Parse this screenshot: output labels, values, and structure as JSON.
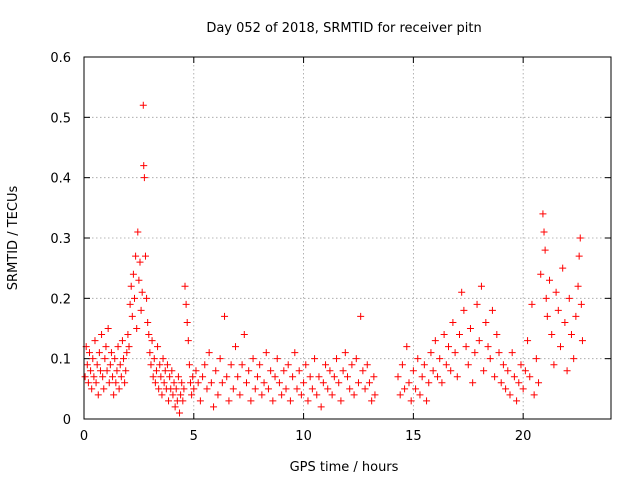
{
  "chart_data": {
    "type": "scatter",
    "title": "Day 052 of 2018, SRMTID for receiver pitn",
    "xlabel": "GPS time / hours",
    "ylabel": "SRMTID / TECUs",
    "xlim": [
      0,
      24
    ],
    "ylim": [
      0,
      0.6
    ],
    "xticks": [
      0,
      5,
      10,
      15,
      20
    ],
    "xtick_labels": [
      "0",
      "5",
      "10",
      "15",
      "20"
    ],
    "yticks": [
      0,
      0.1,
      0.2,
      0.3,
      0.4,
      0.5,
      0.6
    ],
    "ytick_labels": [
      "0",
      "0.1",
      "0.2",
      "0.3",
      "0.4",
      "0.5",
      "0.6"
    ],
    "grid": true,
    "marker": "plus",
    "color": "#ff0000",
    "series": [
      {
        "name": "SRMTID",
        "points": [
          [
            0.05,
            0.07
          ],
          [
            0.1,
            0.12
          ],
          [
            0.15,
            0.09
          ],
          [
            0.2,
            0.06
          ],
          [
            0.25,
            0.11
          ],
          [
            0.3,
            0.08
          ],
          [
            0.35,
            0.05
          ],
          [
            0.4,
            0.1
          ],
          [
            0.45,
            0.07
          ],
          [
            0.5,
            0.13
          ],
          [
            0.55,
            0.06
          ],
          [
            0.6,
            0.09
          ],
          [
            0.65,
            0.04
          ],
          [
            0.7,
            0.11
          ],
          [
            0.75,
            0.08
          ],
          [
            0.8,
            0.14
          ],
          [
            0.85,
            0.07
          ],
          [
            0.9,
            0.05
          ],
          [
            0.95,
            0.1
          ],
          [
            1.0,
            0.12
          ],
          [
            1.05,
            0.08
          ],
          [
            1.1,
            0.15
          ],
          [
            1.15,
            0.06
          ],
          [
            1.2,
            0.09
          ],
          [
            1.25,
            0.11
          ],
          [
            1.3,
            0.07
          ],
          [
            1.35,
            0.04
          ],
          [
            1.4,
            0.1
          ],
          [
            1.45,
            0.06
          ],
          [
            1.5,
            0.08
          ],
          [
            1.55,
            0.12
          ],
          [
            1.6,
            0.05
          ],
          [
            1.65,
            0.09
          ],
          [
            1.7,
            0.07
          ],
          [
            1.75,
            0.13
          ],
          [
            1.8,
            0.1
          ],
          [
            1.85,
            0.06
          ],
          [
            1.9,
            0.08
          ],
          [
            1.95,
            0.11
          ],
          [
            2.0,
            0.14
          ],
          [
            2.05,
            0.12
          ],
          [
            2.1,
            0.19
          ],
          [
            2.15,
            0.22
          ],
          [
            2.2,
            0.17
          ],
          [
            2.25,
            0.24
          ],
          [
            2.3,
            0.2
          ],
          [
            2.35,
            0.27
          ],
          [
            2.4,
            0.15
          ],
          [
            2.45,
            0.31
          ],
          [
            2.5,
            0.23
          ],
          [
            2.55,
            0.26
          ],
          [
            2.6,
            0.18
          ],
          [
            2.65,
            0.21
          ],
          [
            2.7,
            0.52
          ],
          [
            2.72,
            0.42
          ],
          [
            2.75,
            0.4
          ],
          [
            2.8,
            0.27
          ],
          [
            2.85,
            0.2
          ],
          [
            2.9,
            0.16
          ],
          [
            2.95,
            0.14
          ],
          [
            3.0,
            0.11
          ],
          [
            3.05,
            0.09
          ],
          [
            3.1,
            0.13
          ],
          [
            3.15,
            0.07
          ],
          [
            3.2,
            0.1
          ],
          [
            3.25,
            0.06
          ],
          [
            3.3,
            0.08
          ],
          [
            3.35,
            0.12
          ],
          [
            3.4,
            0.05
          ],
          [
            3.45,
            0.09
          ],
          [
            3.5,
            0.07
          ],
          [
            3.55,
            0.04
          ],
          [
            3.6,
            0.1
          ],
          [
            3.65,
            0.06
          ],
          [
            3.7,
            0.08
          ],
          [
            3.75,
            0.05
          ],
          [
            3.8,
            0.09
          ],
          [
            3.85,
            0.03
          ],
          [
            3.9,
            0.07
          ],
          [
            3.95,
            0.05
          ],
          [
            4.0,
            0.08
          ],
          [
            4.05,
            0.04
          ],
          [
            4.1,
            0.06
          ],
          [
            4.15,
            0.02
          ],
          [
            4.2,
            0.05
          ],
          [
            4.25,
            0.03
          ],
          [
            4.3,
            0.07
          ],
          [
            4.35,
            0.01
          ],
          [
            4.4,
            0.04
          ],
          [
            4.45,
            0.06
          ],
          [
            4.5,
            0.03
          ],
          [
            4.55,
            0.05
          ],
          [
            4.6,
            0.22
          ],
          [
            4.65,
            0.19
          ],
          [
            4.7,
            0.16
          ],
          [
            4.75,
            0.13
          ],
          [
            4.8,
            0.09
          ],
          [
            4.85,
            0.06
          ],
          [
            4.9,
            0.04
          ],
          [
            4.95,
            0.07
          ],
          [
            5.0,
            0.05
          ],
          [
            5.1,
            0.08
          ],
          [
            5.2,
            0.06
          ],
          [
            5.3,
            0.03
          ],
          [
            5.4,
            0.07
          ],
          [
            5.5,
            0.09
          ],
          [
            5.6,
            0.05
          ],
          [
            5.7,
            0.11
          ],
          [
            5.8,
            0.06
          ],
          [
            5.9,
            0.02
          ],
          [
            6.0,
            0.08
          ],
          [
            6.1,
            0.04
          ],
          [
            6.2,
            0.1
          ],
          [
            6.3,
            0.06
          ],
          [
            6.4,
            0.17
          ],
          [
            6.5,
            0.07
          ],
          [
            6.6,
            0.03
          ],
          [
            6.7,
            0.09
          ],
          [
            6.8,
            0.05
          ],
          [
            6.9,
            0.12
          ],
          [
            7.0,
            0.07
          ],
          [
            7.1,
            0.04
          ],
          [
            7.2,
            0.09
          ],
          [
            7.3,
            0.14
          ],
          [
            7.4,
            0.06
          ],
          [
            7.5,
            0.08
          ],
          [
            7.6,
            0.03
          ],
          [
            7.7,
            0.1
          ],
          [
            7.8,
            0.05
          ],
          [
            7.9,
            0.07
          ],
          [
            8.0,
            0.09
          ],
          [
            8.1,
            0.04
          ],
          [
            8.2,
            0.06
          ],
          [
            8.3,
            0.11
          ],
          [
            8.4,
            0.05
          ],
          [
            8.5,
            0.08
          ],
          [
            8.6,
            0.03
          ],
          [
            8.7,
            0.07
          ],
          [
            8.8,
            0.1
          ],
          [
            8.9,
            0.06
          ],
          [
            9.0,
            0.04
          ],
          [
            9.1,
            0.08
          ],
          [
            9.2,
            0.05
          ],
          [
            9.3,
            0.09
          ],
          [
            9.4,
            0.03
          ],
          [
            9.5,
            0.07
          ],
          [
            9.6,
            0.11
          ],
          [
            9.7,
            0.05
          ],
          [
            9.8,
            0.08
          ],
          [
            9.9,
            0.04
          ],
          [
            10.0,
            0.06
          ],
          [
            10.1,
            0.09
          ],
          [
            10.2,
            0.03
          ],
          [
            10.3,
            0.07
          ],
          [
            10.4,
            0.05
          ],
          [
            10.5,
            0.1
          ],
          [
            10.6,
            0.04
          ],
          [
            10.7,
            0.07
          ],
          [
            10.8,
            0.02
          ],
          [
            10.9,
            0.06
          ],
          [
            11.0,
            0.09
          ],
          [
            11.1,
            0.05
          ],
          [
            11.2,
            0.08
          ],
          [
            11.3,
            0.04
          ],
          [
            11.4,
            0.07
          ],
          [
            11.5,
            0.1
          ],
          [
            11.6,
            0.06
          ],
          [
            11.7,
            0.03
          ],
          [
            11.8,
            0.08
          ],
          [
            11.9,
            0.11
          ],
          [
            12.0,
            0.07
          ],
          [
            12.1,
            0.05
          ],
          [
            12.2,
            0.09
          ],
          [
            12.3,
            0.04
          ],
          [
            12.4,
            0.1
          ],
          [
            12.5,
            0.06
          ],
          [
            12.6,
            0.17
          ],
          [
            12.7,
            0.08
          ],
          [
            12.8,
            0.05
          ],
          [
            12.9,
            0.09
          ],
          [
            13.0,
            0.06
          ],
          [
            13.1,
            0.03
          ],
          [
            13.2,
            0.07
          ],
          [
            13.25,
            0.04
          ],
          [
            14.3,
            0.07
          ],
          [
            14.4,
            0.04
          ],
          [
            14.5,
            0.09
          ],
          [
            14.6,
            0.05
          ],
          [
            14.7,
            0.12
          ],
          [
            14.8,
            0.06
          ],
          [
            14.9,
            0.03
          ],
          [
            15.0,
            0.08
          ],
          [
            15.1,
            0.05
          ],
          [
            15.2,
            0.1
          ],
          [
            15.3,
            0.04
          ],
          [
            15.4,
            0.07
          ],
          [
            15.5,
            0.09
          ],
          [
            15.6,
            0.03
          ],
          [
            15.7,
            0.06
          ],
          [
            15.8,
            0.11
          ],
          [
            15.9,
            0.08
          ],
          [
            16.0,
            0.13
          ],
          [
            16.1,
            0.07
          ],
          [
            16.2,
            0.1
          ],
          [
            16.3,
            0.06
          ],
          [
            16.4,
            0.14
          ],
          [
            16.5,
            0.09
          ],
          [
            16.6,
            0.12
          ],
          [
            16.7,
            0.08
          ],
          [
            16.8,
            0.16
          ],
          [
            16.9,
            0.11
          ],
          [
            17.0,
            0.07
          ],
          [
            17.1,
            0.14
          ],
          [
            17.2,
            0.21
          ],
          [
            17.3,
            0.18
          ],
          [
            17.4,
            0.12
          ],
          [
            17.5,
            0.09
          ],
          [
            17.6,
            0.15
          ],
          [
            17.7,
            0.06
          ],
          [
            17.8,
            0.11
          ],
          [
            17.9,
            0.19
          ],
          [
            18.0,
            0.13
          ],
          [
            18.1,
            0.22
          ],
          [
            18.2,
            0.08
          ],
          [
            18.3,
            0.16
          ],
          [
            18.4,
            0.12
          ],
          [
            18.5,
            0.1
          ],
          [
            18.6,
            0.18
          ],
          [
            18.7,
            0.07
          ],
          [
            18.8,
            0.14
          ],
          [
            18.9,
            0.11
          ],
          [
            19.0,
            0.06
          ],
          [
            19.1,
            0.09
          ],
          [
            19.2,
            0.05
          ],
          [
            19.3,
            0.08
          ],
          [
            19.4,
            0.04
          ],
          [
            19.5,
            0.11
          ],
          [
            19.6,
            0.07
          ],
          [
            19.7,
            0.03
          ],
          [
            19.8,
            0.06
          ],
          [
            19.9,
            0.09
          ],
          [
            20.0,
            0.05
          ],
          [
            20.1,
            0.08
          ],
          [
            20.2,
            0.13
          ],
          [
            20.3,
            0.07
          ],
          [
            20.4,
            0.19
          ],
          [
            20.5,
            0.04
          ],
          [
            20.6,
            0.1
          ],
          [
            20.7,
            0.06
          ],
          [
            20.8,
            0.24
          ],
          [
            20.9,
            0.34
          ],
          [
            20.95,
            0.31
          ],
          [
            21.0,
            0.28
          ],
          [
            21.05,
            0.2
          ],
          [
            21.1,
            0.17
          ],
          [
            21.2,
            0.23
          ],
          [
            21.3,
            0.14
          ],
          [
            21.4,
            0.09
          ],
          [
            21.5,
            0.21
          ],
          [
            21.6,
            0.18
          ],
          [
            21.7,
            0.12
          ],
          [
            21.8,
            0.25
          ],
          [
            21.9,
            0.16
          ],
          [
            22.0,
            0.08
          ],
          [
            22.1,
            0.2
          ],
          [
            22.2,
            0.14
          ],
          [
            22.3,
            0.1
          ],
          [
            22.4,
            0.17
          ],
          [
            22.5,
            0.22
          ],
          [
            22.55,
            0.27
          ],
          [
            22.6,
            0.3
          ],
          [
            22.65,
            0.19
          ],
          [
            22.7,
            0.13
          ]
        ]
      }
    ]
  }
}
